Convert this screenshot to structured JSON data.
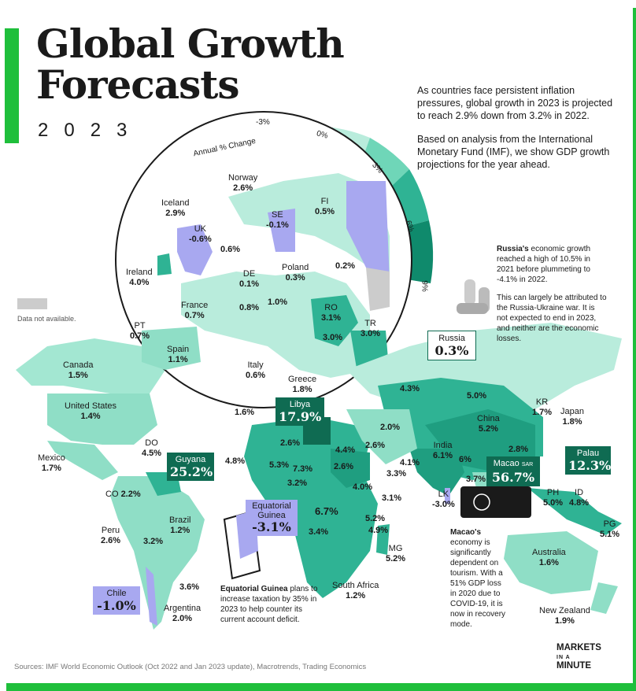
{
  "title_line1": "Global Growth",
  "title_line2": "Forecasts",
  "year": "2023",
  "intro_p1": "As countries face persistent inflation pressures, global growth in 2023 is projected to reach 2.9% down from 3.2% in 2022.",
  "intro_p2": "Based on analysis from the International Monetary Fund (IMF), we show GDP growth projections for the year ahead.",
  "scale": {
    "label": "Annual % Change",
    "ticks": [
      "-3%",
      "0%",
      "3%",
      "6%",
      "9%"
    ],
    "colors": [
      "#a8a8f0",
      "#b9ecdc",
      "#6fd6b8",
      "#2fb394",
      "#0f8a6c"
    ]
  },
  "legend_na": "Data not available.",
  "labels": {
    "norway": {
      "name": "Norway",
      "value": "2.6%"
    },
    "iceland": {
      "name": "Iceland",
      "value": "2.9%"
    },
    "uk": {
      "name": "UK",
      "value": "-0.6%"
    },
    "fi": {
      "name": "FI",
      "value": "0.5%"
    },
    "se": {
      "name": "SE",
      "value": "-0.1%"
    },
    "nl": {
      "value": "0.6%"
    },
    "ireland": {
      "name": "Ireland",
      "value": "4.0%"
    },
    "de": {
      "name": "DE",
      "value": "0.1%"
    },
    "poland": {
      "name": "Poland",
      "value": "0.3%"
    },
    "baltic": {
      "value": "0.2%"
    },
    "france": {
      "name": "France",
      "value": "0.7%"
    },
    "be": {
      "value": "0.8%"
    },
    "at": {
      "value": "1.0%"
    },
    "ro": {
      "name": "RO",
      "value": "3.1%"
    },
    "bg": {
      "value": "3.0%"
    },
    "pt": {
      "name": "PT",
      "value": "0.7%"
    },
    "spain": {
      "name": "Spain",
      "value": "1.1%"
    },
    "tr": {
      "name": "TR",
      "value": "3.0%"
    },
    "italy": {
      "name": "Italy",
      "value": "0.6%"
    },
    "greece": {
      "name": "Greece",
      "value": "1.8%"
    },
    "russia": {
      "name": "Russia",
      "value": "0.3%"
    },
    "canada": {
      "name": "Canada",
      "value": "1.5%"
    },
    "us": {
      "name": "United States",
      "value": "1.4%"
    },
    "mexico": {
      "name": "Mexico",
      "value": "1.7%"
    },
    "do": {
      "name": "DO",
      "value": "4.5%"
    },
    "guyana": {
      "name": "Guyana",
      "value": "25.2%"
    },
    "co": {
      "name": "CO",
      "value": "2.2%"
    },
    "peru": {
      "name": "Peru",
      "value": "2.6%"
    },
    "brazil": {
      "name": "Brazil",
      "value": "1.2%"
    },
    "bolivia": {
      "value": "3.2%"
    },
    "uruguay": {
      "value": "3.6%"
    },
    "chile": {
      "name": "Chile",
      "value": "-1.0%"
    },
    "argentina": {
      "name": "Argentina",
      "value": "2.0%"
    },
    "tunisia": {
      "value": "1.6%"
    },
    "libya": {
      "name": "Libya",
      "value": "17.9%"
    },
    "morocco_w": {
      "value": "4.8%"
    },
    "algeria": {
      "value": "2.6%"
    },
    "mali": {
      "value": "5.3%"
    },
    "niger": {
      "value": "7.3%"
    },
    "egypt": {
      "value": "4.4%"
    },
    "sudan": {
      "value": "2.6%"
    },
    "nigeria": {
      "value": "3.2%"
    },
    "ethiopia": {
      "value": "4.0%"
    },
    "kenya": {
      "value": "3.1%"
    },
    "drc": {
      "value": "6.7%"
    },
    "tz": {
      "value": "5.2%"
    },
    "moz": {
      "value": "4.9%"
    },
    "angola": {
      "value": "3.4%"
    },
    "eq_guinea": {
      "name": "Equatorial Guinea",
      "value": "-3.1%"
    },
    "mg": {
      "name": "MG",
      "value": "5.2%"
    },
    "south_africa": {
      "name": "South Africa",
      "value": "1.2%"
    },
    "me": {
      "value": "2.0%"
    },
    "iran": {
      "value": "2.6%"
    },
    "oman": {
      "value": "4.1%"
    },
    "yemen": {
      "value": "3.3%"
    },
    "kz": {
      "value": "4.3%"
    },
    "mongolia": {
      "value": "5.0%"
    },
    "china": {
      "name": "China",
      "value": "5.2%"
    },
    "kr": {
      "name": "KR",
      "value": "1.7%"
    },
    "japan": {
      "name": "Japan",
      "value": "1.8%"
    },
    "india": {
      "name": "India",
      "value": "6.1%"
    },
    "mm": {
      "value": "6%"
    },
    "th": {
      "value": "3.7%"
    },
    "vn": {
      "value": "2.8%"
    },
    "lk": {
      "name": "LK",
      "value": "-3.0%"
    },
    "macao": {
      "name": "Macao",
      "sar": "SAR",
      "value": "56.7%"
    },
    "palau": {
      "name": "Palau",
      "value": "12.3%"
    },
    "ph": {
      "name": "PH",
      "value": "5.0%"
    },
    "id": {
      "name": "ID",
      "value": "4.8%"
    },
    "pg": {
      "name": "PG",
      "value": "5.1%"
    },
    "australia": {
      "name": "Australia",
      "value": "1.6%"
    },
    "nz": {
      "name": "New Zealand",
      "value": "1.9%"
    }
  },
  "notes": {
    "russia_bold": "Russia's",
    "russia_rest": " economic growth reached a high of 10.5% in 2021 before plummeting to -4.1% in 2022.",
    "russia_p2": "This can largely be attributed to the Russia-Ukraine war. It is not expected to end in 2023, and neither are the economic losses.",
    "eq_bold": "Equatorial Guinea",
    "eq_rest": " plans to increase taxation by 35% in 2023 to help counter its current account deficit.",
    "macao_bold": "Macao's",
    "macao_rest": " economy is significantly dependent on tourism. With a 51% GDP loss in 2020 due to COVID-19, it is now in recovery mode."
  },
  "source": "Sources: IMF World Economic Outlook (Oct 2022 and Jan 2023 update), Macrotrends, Trading Economics",
  "logo": {
    "line1": "MARKETS",
    "line2": "IN A",
    "line3": "MINUTE"
  }
}
